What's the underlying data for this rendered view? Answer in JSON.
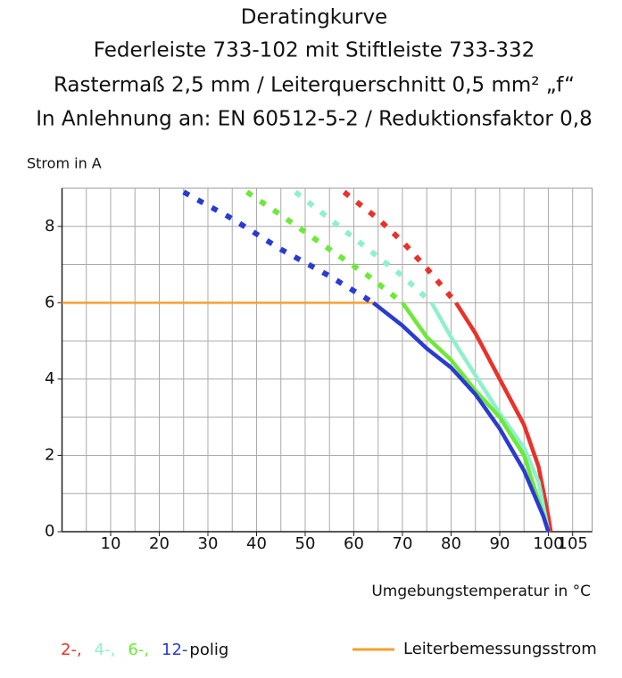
{
  "chart_data": {
    "type": "line",
    "title_lines": [
      "Deratingkurve",
      "Federleiste 733-102 mit Stiftleiste 733-332",
      "Rastermaß 2,5 mm / Leiterquerschnitt 0,5 mm² „f“",
      "In Anlehnung an: EN 60512-5-2 / Reduktionsfaktor 0,8"
    ],
    "y_label": "Strom in A",
    "x_label": "Umgebungstemperatur in °C",
    "xlim": [
      0,
      109
    ],
    "ylim": [
      0,
      9
    ],
    "xticks": [
      10,
      20,
      30,
      40,
      50,
      60,
      70,
      80,
      90,
      100,
      105
    ],
    "yticks": [
      0,
      2,
      4,
      6,
      8
    ],
    "xgrid": [
      5,
      10,
      15,
      20,
      25,
      30,
      35,
      40,
      45,
      50,
      55,
      60,
      65,
      70,
      75,
      80,
      85,
      90,
      95,
      100,
      105
    ],
    "ygrid": [
      1,
      2,
      3,
      4,
      5,
      6,
      7,
      8,
      9
    ],
    "grid": true,
    "legend_suffix": "polig",
    "series": [
      {
        "name": "2-,",
        "color": "#e8322a",
        "x": [
          81,
          85,
          90,
          95,
          98,
          100,
          100.5
        ],
        "values": [
          6,
          5.2,
          4.0,
          2.8,
          1.7,
          0.4,
          0
        ],
        "dashed": {
          "x": [
            58,
            65,
            70,
            75,
            81
          ],
          "values": [
            8.9,
            8.2,
            7.6,
            6.9,
            6.0
          ]
        }
      },
      {
        "name": "4-,",
        "color": "#8ff0cc",
        "x": [
          76,
          80,
          85,
          90,
          95,
          98,
          100
        ],
        "values": [
          6,
          5.1,
          4.1,
          3.1,
          2.2,
          1.3,
          0
        ],
        "dashed": {
          "x": [
            48,
            55,
            62,
            70,
            76
          ],
          "values": [
            8.9,
            8.2,
            7.5,
            6.7,
            6.0
          ]
        }
      },
      {
        "name": "6-,",
        "color": "#6ee83a",
        "x": [
          70,
          75,
          80,
          85,
          90,
          95,
          100
        ],
        "values": [
          6,
          5.1,
          4.5,
          3.7,
          3.0,
          2.0,
          0
        ],
        "dashed": {
          "x": [
            38,
            45,
            55,
            63,
            70
          ],
          "values": [
            8.9,
            8.3,
            7.4,
            6.7,
            6.0
          ]
        }
      },
      {
        "name": "12-",
        "color": "#2a3bd0",
        "x": [
          64,
          70,
          75,
          80,
          85,
          90,
          95,
          99,
          100
        ],
        "values": [
          6,
          5.4,
          4.8,
          4.3,
          3.6,
          2.7,
          1.6,
          0.4,
          0
        ],
        "dashed": {
          "x": [
            25,
            35,
            45,
            55,
            64
          ],
          "values": [
            8.9,
            8.2,
            7.4,
            6.7,
            6.0
          ]
        }
      }
    ],
    "reference": {
      "name": "Leiterbemessungsstrom",
      "color": "#f5a030",
      "x": [
        0,
        64
      ],
      "values": [
        6,
        6
      ]
    }
  }
}
